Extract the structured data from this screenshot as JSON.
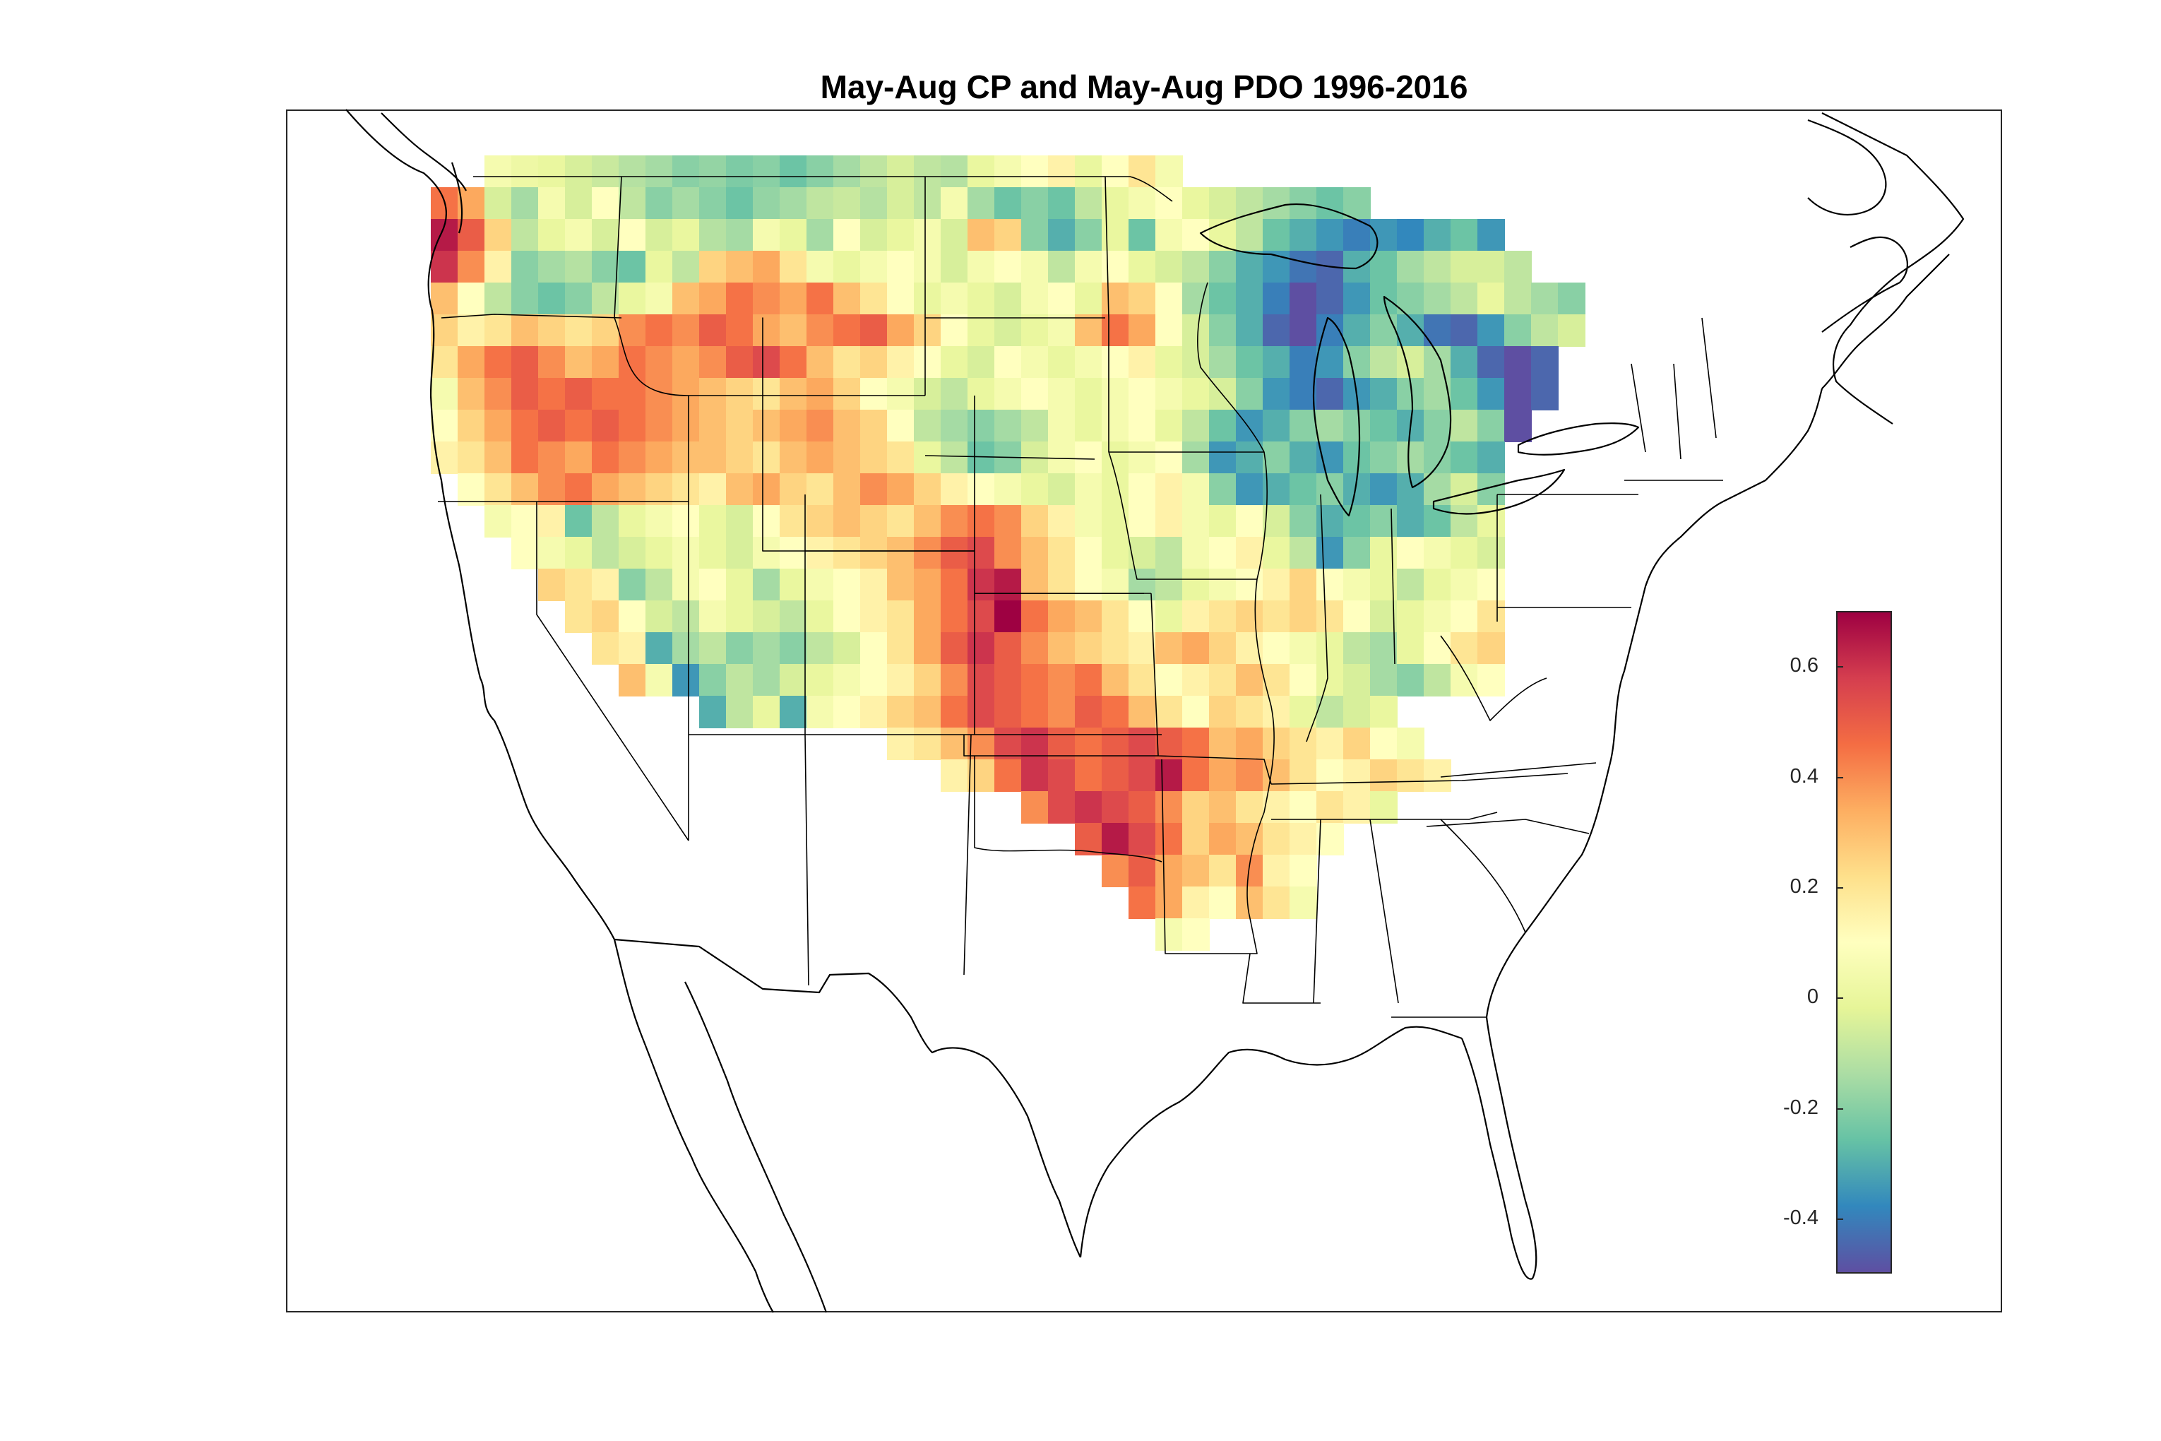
{
  "title": "May-Aug CP and May-Aug PDO 1996-2016",
  "colorbar": {
    "min": -0.5,
    "max": 0.7,
    "colormap": "Spectral",
    "ticks": [
      {
        "value": 0.6,
        "label": "0.6"
      },
      {
        "value": 0.4,
        "label": "0.4"
      },
      {
        "value": 0.2,
        "label": "0.2"
      },
      {
        "value": 0.0,
        "label": "0"
      },
      {
        "value": -0.2,
        "label": "-0.2"
      },
      {
        "value": -0.4,
        "label": "-0.4"
      }
    ],
    "colors": [
      "#5e4fa2",
      "#3288bd",
      "#66c2a5",
      "#abdda4",
      "#e6f598",
      "#ffffbf",
      "#fee08b",
      "#fdae61",
      "#f46d43",
      "#d53e4f",
      "#9e0142"
    ]
  },
  "chart_data": {
    "type": "heatmap",
    "title": "May-Aug CP and May-Aug PDO 1996-2016",
    "value_range": [
      -0.5,
      0.7
    ],
    "grid_origin": {
      "lon": -125.0,
      "lat": 49.0
    },
    "grid_step_deg": 1.0,
    "row_lats": [
      49,
      48,
      47,
      46,
      45,
      44,
      43,
      42,
      41,
      40,
      39,
      38,
      37,
      36,
      35,
      34,
      33,
      32,
      31,
      30,
      29,
      28,
      27,
      26,
      25
    ],
    "rows": [
      {
        "lat": 49,
        "lon_start": -123,
        "values": [
          0.05,
          0.02,
          0.0,
          -0.05,
          -0.08,
          -0.12,
          -0.15,
          -0.2,
          -0.18,
          -0.22,
          -0.2,
          -0.25,
          -0.2,
          -0.15,
          -0.1,
          -0.05,
          -0.1,
          -0.12,
          0.0,
          0.05,
          0.1,
          0.15,
          0.0,
          0.1,
          0.2,
          0.05
        ]
      },
      {
        "lat": 48,
        "lon_start": -125,
        "values": [
          0.45,
          0.35,
          -0.05,
          -0.15,
          0.05,
          -0.05,
          0.1,
          -0.1,
          -0.2,
          -0.15,
          -0.2,
          -0.25,
          -0.18,
          -0.15,
          -0.1,
          -0.08,
          -0.12,
          -0.05,
          -0.1,
          0.05,
          -0.15,
          -0.25,
          -0.2,
          -0.25,
          -0.1,
          0.0,
          0.05,
          0.1,
          0.0,
          -0.05,
          -0.1,
          -0.15,
          -0.2,
          -0.25,
          -0.2
        ]
      },
      {
        "lat": 47,
        "lon_start": -125,
        "values": [
          0.65,
          0.5,
          0.25,
          -0.1,
          0.0,
          0.05,
          -0.05,
          0.1,
          -0.05,
          0.0,
          -0.12,
          -0.15,
          0.05,
          0.0,
          -0.15,
          0.1,
          -0.05,
          0.0,
          0.05,
          -0.05,
          0.3,
          0.25,
          -0.2,
          -0.3,
          -0.2,
          0.0,
          -0.25,
          0.05,
          0.1,
          0.0,
          -0.1,
          -0.25,
          -0.3,
          -0.35,
          -0.4,
          -0.35,
          -0.38,
          -0.3,
          -0.25,
          -0.35
        ]
      },
      {
        "lat": 46,
        "lon_start": -125,
        "values": [
          0.6,
          0.4,
          0.15,
          -0.2,
          -0.15,
          -0.12,
          -0.2,
          -0.25,
          0.0,
          -0.1,
          0.25,
          0.3,
          0.35,
          0.2,
          0.05,
          0.0,
          0.05,
          0.1,
          0.05,
          -0.05,
          0.05,
          0.1,
          0.05,
          -0.1,
          0.05,
          0.1,
          0.0,
          -0.05,
          -0.1,
          -0.2,
          -0.3,
          -0.35,
          -0.42,
          -0.45,
          -0.3,
          -0.25,
          -0.15,
          -0.1,
          -0.05,
          -0.05,
          -0.1
        ]
      },
      {
        "lat": 45,
        "lon_start": -125,
        "values": [
          0.3,
          0.1,
          -0.1,
          -0.2,
          -0.25,
          -0.2,
          -0.1,
          0.0,
          0.05,
          0.3,
          0.35,
          0.45,
          0.4,
          0.35,
          0.45,
          0.3,
          0.2,
          0.1,
          0.0,
          0.05,
          0.0,
          -0.05,
          0.05,
          0.1,
          0.0,
          0.3,
          0.25,
          0.1,
          -0.15,
          -0.25,
          -0.3,
          -0.4,
          -0.5,
          -0.45,
          -0.35,
          -0.25,
          -0.2,
          -0.15,
          -0.1,
          0.0,
          -0.1,
          -0.15,
          -0.2
        ]
      },
      {
        "lat": 44,
        "lon_start": -125,
        "values": [
          0.25,
          0.15,
          0.2,
          0.3,
          0.25,
          0.2,
          0.25,
          0.4,
          0.45,
          0.4,
          0.5,
          0.45,
          0.35,
          0.3,
          0.4,
          0.45,
          0.5,
          0.35,
          0.25,
          0.1,
          0.0,
          -0.05,
          0.0,
          0.05,
          0.3,
          0.45,
          0.35,
          0.1,
          -0.05,
          -0.2,
          -0.3,
          -0.45,
          -0.5,
          -0.4,
          -0.3,
          -0.2,
          -0.3,
          -0.42,
          -0.45,
          -0.35,
          -0.2,
          -0.1,
          -0.05
        ]
      },
      {
        "lat": 43,
        "lon_start": -125,
        "values": [
          0.2,
          0.35,
          0.45,
          0.5,
          0.4,
          0.3,
          0.35,
          0.45,
          0.4,
          0.35,
          0.4,
          0.5,
          0.55,
          0.45,
          0.3,
          0.2,
          0.25,
          0.15,
          0.1,
          0.0,
          -0.05,
          0.1,
          0.05,
          0.0,
          0.05,
          0.1,
          0.15,
          0.0,
          -0.05,
          -0.15,
          -0.25,
          -0.3,
          -0.4,
          -0.35,
          -0.2,
          -0.1,
          -0.05,
          -0.15,
          -0.3,
          -0.45,
          -0.5,
          -0.45
        ]
      },
      {
        "lat": 42,
        "lon_start": -125,
        "values": [
          0.05,
          0.3,
          0.4,
          0.5,
          0.45,
          0.5,
          0.45,
          0.45,
          0.4,
          0.35,
          0.3,
          0.25,
          0.2,
          0.3,
          0.35,
          0.25,
          0.1,
          0.05,
          -0.05,
          -0.1,
          0.0,
          0.05,
          0.1,
          0.05,
          0.0,
          0.05,
          0.1,
          0.05,
          0.0,
          -0.05,
          -0.2,
          -0.35,
          -0.4,
          -0.45,
          -0.35,
          -0.3,
          -0.2,
          -0.15,
          -0.25,
          -0.35,
          -0.5,
          -0.45
        ]
      },
      {
        "lat": 41,
        "lon_start": -125,
        "values": [
          0.1,
          0.25,
          0.35,
          0.45,
          0.5,
          0.45,
          0.5,
          0.45,
          0.4,
          0.35,
          0.3,
          0.25,
          0.3,
          0.35,
          0.4,
          0.3,
          0.25,
          0.1,
          -0.1,
          -0.15,
          -0.2,
          -0.15,
          -0.1,
          0.05,
          0.0,
          0.05,
          0.1,
          0.0,
          -0.1,
          -0.25,
          -0.35,
          -0.3,
          -0.2,
          -0.15,
          -0.2,
          -0.25,
          -0.3,
          -0.2,
          -0.1,
          -0.2,
          -0.5
        ]
      },
      {
        "lat": 40,
        "lon_start": -125,
        "values": [
          0.15,
          0.2,
          0.3,
          0.45,
          0.4,
          0.35,
          0.45,
          0.4,
          0.35,
          0.3,
          0.3,
          0.25,
          0.2,
          0.3,
          0.35,
          0.3,
          0.25,
          0.2,
          0.0,
          -0.1,
          -0.25,
          -0.2,
          -0.05,
          0.05,
          0.1,
          0.0,
          0.05,
          0.1,
          -0.15,
          -0.35,
          -0.3,
          -0.2,
          -0.3,
          -0.35,
          -0.25,
          -0.2,
          -0.15,
          -0.2,
          -0.25,
          -0.3
        ]
      },
      {
        "lat": 39,
        "lon_start": -124,
        "values": [
          0.1,
          0.2,
          0.3,
          0.4,
          0.45,
          0.35,
          0.3,
          0.25,
          0.2,
          0.15,
          0.3,
          0.35,
          0.25,
          0.2,
          0.3,
          0.4,
          0.35,
          0.25,
          0.15,
          0.1,
          0.05,
          0.0,
          -0.05,
          0.05,
          0.0,
          0.1,
          0.15,
          0.05,
          -0.2,
          -0.35,
          -0.3,
          -0.25,
          -0.2,
          -0.3,
          -0.35,
          -0.3,
          -0.15,
          -0.05,
          -0.2
        ]
      },
      {
        "lat": 38,
        "lon_start": -123,
        "values": [
          0.05,
          0.1,
          0.15,
          -0.25,
          -0.1,
          0.0,
          0.05,
          0.1,
          0.0,
          -0.05,
          0.1,
          0.2,
          0.25,
          0.3,
          0.25,
          0.2,
          0.3,
          0.4,
          0.45,
          0.4,
          0.25,
          0.15,
          0.05,
          0.0,
          0.1,
          0.15,
          0.05,
          0.0,
          0.1,
          -0.05,
          -0.2,
          -0.3,
          -0.25,
          -0.2,
          -0.3,
          -0.25,
          -0.1,
          0.0
        ]
      },
      {
        "lat": 37,
        "lon_start": -122,
        "values": [
          0.1,
          0.05,
          0.0,
          -0.1,
          -0.05,
          0.0,
          0.05,
          0.0,
          -0.05,
          0.05,
          0.1,
          0.15,
          0.2,
          0.25,
          0.3,
          0.4,
          0.5,
          0.55,
          0.4,
          0.3,
          0.2,
          0.1,
          0.0,
          -0.05,
          -0.1,
          0.05,
          0.1,
          0.15,
          0.0,
          -0.1,
          -0.35,
          -0.2,
          0.0,
          0.1,
          0.05,
          0.0,
          -0.05
        ]
      },
      {
        "lat": 36,
        "lon_start": -121,
        "values": [
          0.25,
          0.2,
          0.15,
          -0.2,
          -0.1,
          0.05,
          0.1,
          0.0,
          -0.15,
          0.0,
          0.05,
          0.1,
          0.15,
          0.3,
          0.35,
          0.45,
          0.6,
          0.65,
          0.3,
          0.2,
          0.1,
          0.05,
          -0.15,
          -0.1,
          0.0,
          0.05,
          0.1,
          0.15,
          0.25,
          0.1,
          0.05,
          0.0,
          -0.1,
          0.0,
          0.05,
          0.1
        ]
      },
      {
        "lat": 35,
        "lon_start": -120,
        "values": [
          0.2,
          0.25,
          0.1,
          -0.05,
          -0.1,
          0.05,
          0.0,
          -0.05,
          -0.1,
          0.0,
          0.1,
          0.15,
          0.2,
          0.35,
          0.45,
          0.55,
          0.7,
          0.45,
          0.35,
          0.3,
          0.2,
          0.1,
          0.0,
          0.15,
          0.2,
          0.25,
          0.2,
          0.25,
          0.2,
          0.1,
          -0.05,
          0.0,
          0.05,
          0.1,
          0.2
        ]
      },
      {
        "lat": 34,
        "lon_start": -119,
        "values": [
          0.2,
          0.15,
          -0.3,
          -0.15,
          -0.1,
          -0.2,
          -0.15,
          -0.2,
          -0.1,
          -0.05,
          0.1,
          0.2,
          0.35,
          0.5,
          0.6,
          0.5,
          0.4,
          0.3,
          0.25,
          0.2,
          0.15,
          0.3,
          0.35,
          0.25,
          0.15,
          0.1,
          0.05,
          0.0,
          -0.1,
          -0.15,
          0.0,
          0.1,
          0.2,
          0.25
        ]
      },
      {
        "lat": 33,
        "lon_start": -118,
        "values": [
          0.3,
          0.05,
          -0.35,
          -0.2,
          -0.1,
          -0.15,
          -0.05,
          0.0,
          0.05,
          0.1,
          0.15,
          0.25,
          0.4,
          0.55,
          0.5,
          0.45,
          0.4,
          0.45,
          0.3,
          0.2,
          0.1,
          0.15,
          0.2,
          0.3,
          0.2,
          0.1,
          0.0,
          -0.05,
          -0.15,
          -0.2,
          -0.1,
          0.05,
          0.1
        ]
      },
      {
        "lat": 32,
        "lon_start": -115,
        "values": [
          -0.3,
          -0.1,
          0.0,
          -0.3,
          0.05,
          0.1,
          0.15,
          0.25,
          0.3,
          0.45,
          0.55,
          0.5,
          0.45,
          0.4,
          0.5,
          0.45,
          0.3,
          0.2,
          0.1,
          0.25,
          0.2,
          0.15,
          0.0,
          -0.1,
          -0.05,
          0.0
        ]
      },
      {
        "lat": 31,
        "lon_start": -108,
        "values": [
          0.15,
          0.2,
          0.3,
          0.4,
          0.55,
          0.6,
          0.5,
          0.45,
          0.5,
          0.55,
          0.5,
          0.45,
          0.3,
          0.35,
          0.25,
          0.2,
          0.15,
          0.25,
          0.1,
          0.05
        ]
      },
      {
        "lat": 30,
        "lon_start": -106,
        "values": [
          0.15,
          0.25,
          0.45,
          0.6,
          0.55,
          0.45,
          0.5,
          0.55,
          0.65,
          0.45,
          0.35,
          0.4,
          0.3,
          0.2,
          0.1,
          0.15,
          0.25,
          0.2,
          0.15
        ]
      },
      {
        "lat": 29,
        "lon_start": -103,
        "values": [
          0.4,
          0.55,
          0.6,
          0.55,
          0.5,
          0.4,
          0.25,
          0.3,
          0.2,
          0.15,
          0.1,
          0.2,
          0.15,
          0.0
        ]
      },
      {
        "lat": 28,
        "lon_start": -101,
        "values": [
          0.5,
          0.65,
          0.55,
          0.45,
          0.25,
          0.35,
          0.3,
          0.2,
          0.15,
          0.1
        ]
      },
      {
        "lat": 27,
        "lon_start": -100,
        "values": [
          0.4,
          0.5,
          0.35,
          0.3,
          0.2,
          0.4,
          0.15,
          0.1
        ]
      },
      {
        "lat": 26,
        "lon_start": -99,
        "values": [
          0.45,
          0.35,
          0.15,
          0.1,
          0.3,
          0.2,
          0.05
        ]
      },
      {
        "lat": 25,
        "lon_start": -98,
        "values": [
          0.05,
          0.1
        ]
      }
    ]
  }
}
